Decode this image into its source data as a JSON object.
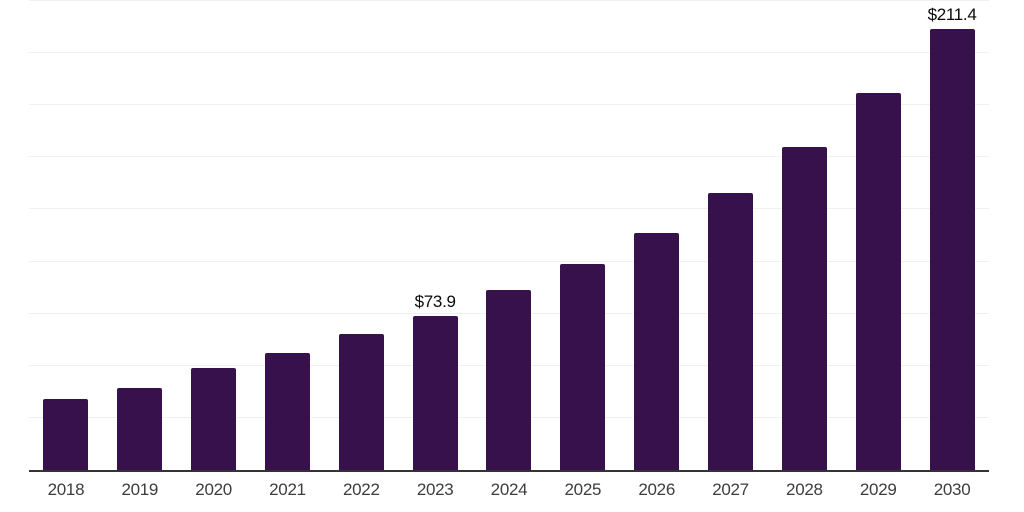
{
  "chart_data": {
    "type": "bar",
    "title": "",
    "xlabel": "",
    "ylabel": "",
    "categories": [
      "2018",
      "2019",
      "2020",
      "2021",
      "2022",
      "2023",
      "2024",
      "2025",
      "2026",
      "2027",
      "2028",
      "2029",
      "2030"
    ],
    "values": [
      34.3,
      39.5,
      48.8,
      56.1,
      65.2,
      73.9,
      86.3,
      98.7,
      113.8,
      132.7,
      155.0,
      181.0,
      211.4
    ],
    "data_labels": [
      "",
      "",
      "",
      "",
      "",
      "$73.9",
      "",
      "",
      "",
      "",
      "",
      "",
      "$211.4"
    ],
    "ylim": [
      0,
      225
    ],
    "gridline_step": 25,
    "grid": true,
    "legend": false,
    "colors": {
      "bar": "#36114C",
      "axis_line": "#333333",
      "gridline": "#f0f0f0",
      "tick_label": "#3d3d3d",
      "data_label": "#0a0a0a"
    }
  }
}
